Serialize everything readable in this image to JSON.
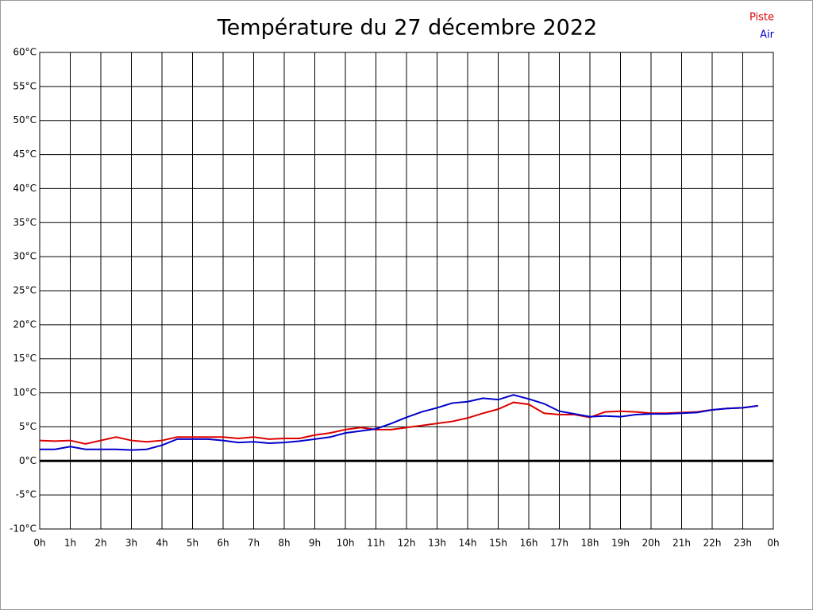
{
  "chart_data": {
    "type": "line",
    "title": "Température du 27 décembre 2022",
    "x": [
      0,
      0.5,
      1,
      1.5,
      2,
      2.5,
      3,
      3.5,
      4,
      4.5,
      5,
      5.5,
      6,
      6.5,
      7,
      7.5,
      8,
      8.5,
      9,
      9.5,
      10,
      10.5,
      11,
      11.5,
      12,
      12.5,
      13,
      13.5,
      14,
      14.5,
      15,
      15.5,
      16,
      16.5,
      17,
      17.5,
      18,
      18.5,
      19,
      19.5,
      20,
      20.5,
      21,
      21.5,
      22,
      22.5,
      23,
      23.5
    ],
    "series": [
      {
        "name": "Piste",
        "color": "#dd0000",
        "values": [
          3.0,
          2.9,
          3.0,
          2.5,
          3.0,
          3.5,
          3.0,
          2.8,
          3.0,
          3.5,
          3.5,
          3.5,
          3.5,
          3.3,
          3.5,
          3.2,
          3.3,
          3.3,
          3.8,
          4.1,
          4.6,
          4.9,
          4.6,
          4.6,
          4.9,
          5.2,
          5.5,
          5.8,
          6.3,
          7.0,
          7.6,
          8.6,
          8.3,
          7.0,
          6.8,
          6.8,
          6.4,
          7.2,
          7.3,
          7.2,
          7.0,
          7.0,
          7.1,
          7.2,
          7.5,
          7.7,
          7.8,
          8.1
        ]
      },
      {
        "name": "Air",
        "color": "#0000cc",
        "values": [
          1.7,
          1.7,
          2.1,
          1.7,
          1.7,
          1.7,
          1.6,
          1.7,
          2.3,
          3.2,
          3.2,
          3.2,
          3.0,
          2.7,
          2.8,
          2.6,
          2.7,
          2.9,
          3.2,
          3.5,
          4.1,
          4.4,
          4.7,
          5.5,
          6.4,
          7.2,
          7.8,
          8.5,
          8.7,
          9.2,
          9.0,
          9.7,
          9.1,
          8.4,
          7.3,
          6.9,
          6.5,
          6.6,
          6.5,
          6.8,
          6.9,
          6.9,
          7.0,
          7.1,
          7.5,
          7.7,
          7.8,
          8.1
        ]
      }
    ],
    "xlim": [
      0,
      24
    ],
    "xticks": [
      {
        "value": 0,
        "label": "0h"
      },
      {
        "value": 1,
        "label": "1h"
      },
      {
        "value": 2,
        "label": "2h"
      },
      {
        "value": 3,
        "label": "3h"
      },
      {
        "value": 4,
        "label": "4h"
      },
      {
        "value": 5,
        "label": "5h"
      },
      {
        "value": 6,
        "label": "6h"
      },
      {
        "value": 7,
        "label": "7h"
      },
      {
        "value": 8,
        "label": "8h"
      },
      {
        "value": 9,
        "label": "9h"
      },
      {
        "value": 10,
        "label": "10h"
      },
      {
        "value": 11,
        "label": "11h"
      },
      {
        "value": 12,
        "label": "12h"
      },
      {
        "value": 13,
        "label": "13h"
      },
      {
        "value": 14,
        "label": "14h"
      },
      {
        "value": 15,
        "label": "15h"
      },
      {
        "value": 16,
        "label": "16h"
      },
      {
        "value": 17,
        "label": "17h"
      },
      {
        "value": 18,
        "label": "18h"
      },
      {
        "value": 19,
        "label": "19h"
      },
      {
        "value": 20,
        "label": "20h"
      },
      {
        "value": 21,
        "label": "21h"
      },
      {
        "value": 22,
        "label": "22h"
      },
      {
        "value": 23,
        "label": "23h"
      },
      {
        "value": 24,
        "label": "0h"
      }
    ],
    "ylim": [
      -10,
      60
    ],
    "yticks": [
      {
        "value": -10,
        "label": "-10°C"
      },
      {
        "value": -5,
        "label": "-5°C"
      },
      {
        "value": 0,
        "label": "0°C"
      },
      {
        "value": 5,
        "label": "5°C"
      },
      {
        "value": 10,
        "label": "10°C"
      },
      {
        "value": 15,
        "label": "15°C"
      },
      {
        "value": 20,
        "label": "20°C"
      },
      {
        "value": 25,
        "label": "25°C"
      },
      {
        "value": 30,
        "label": "30°C"
      },
      {
        "value": 35,
        "label": "35°C"
      },
      {
        "value": 40,
        "label": "40°C"
      },
      {
        "value": 45,
        "label": "45°C"
      },
      {
        "value": 50,
        "label": "50°C"
      },
      {
        "value": 55,
        "label": "55°C"
      },
      {
        "value": 60,
        "label": "60°C"
      }
    ],
    "grid": true,
    "zero_line": true,
    "legend": "top-right"
  }
}
